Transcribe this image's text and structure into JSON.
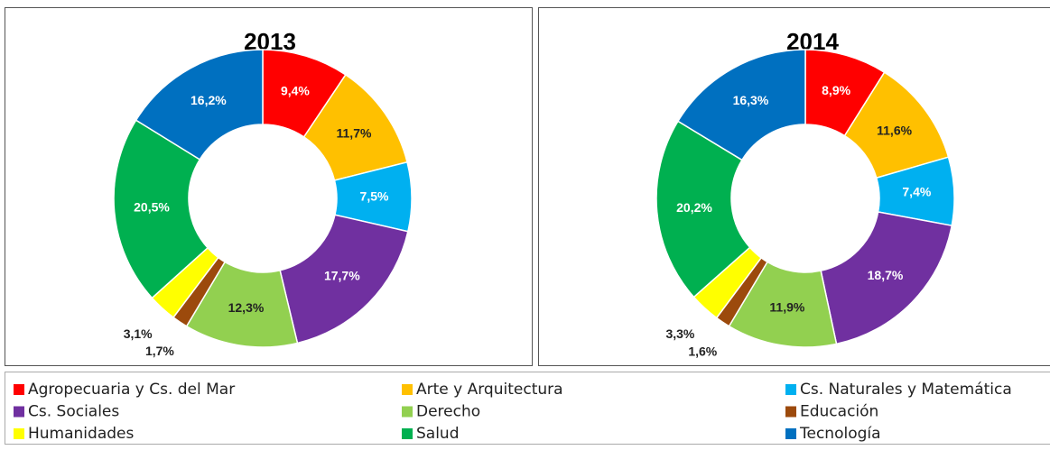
{
  "chart_data": [
    {
      "type": "pie",
      "title": "2013",
      "categories": [
        "Agropecuaria y Cs. del Mar",
        "Arte y Arquitectura",
        "Cs. Naturales y Matemática",
        "Cs. Sociales",
        "Derecho",
        "Educación",
        "Humanidades",
        "Salud",
        "Tecnología"
      ],
      "colors": [
        "#ff0000",
        "#ffc000",
        "#00b0f0",
        "#7030a0",
        "#92d050",
        "#9c4a0c",
        "#ffff00",
        "#00b050",
        "#0070c0"
      ],
      "values": [
        9.4,
        11.7,
        7.5,
        17.7,
        12.3,
        1.7,
        3.1,
        20.5,
        16.2
      ],
      "value_labels": [
        "9,4%",
        "11,7%",
        "7,5%",
        "17,7%",
        "12,3%",
        "1,7%",
        "3,1%",
        "20,5%",
        "16,2%"
      ]
    },
    {
      "type": "pie",
      "title": "2014",
      "categories": [
        "Agropecuaria y Cs. del Mar",
        "Arte y Arquitectura",
        "Cs. Naturales y Matemática",
        "Cs. Sociales",
        "Derecho",
        "Educación",
        "Humanidades",
        "Salud",
        "Tecnología"
      ],
      "colors": [
        "#ff0000",
        "#ffc000",
        "#00b0f0",
        "#7030a0",
        "#92d050",
        "#9c4a0c",
        "#ffff00",
        "#00b050",
        "#0070c0"
      ],
      "values": [
        8.9,
        11.6,
        7.4,
        18.7,
        11.9,
        1.6,
        3.3,
        20.2,
        16.3
      ],
      "value_labels": [
        "8,9%",
        "11,6%",
        "7,4%",
        "18,7%",
        "11,9%",
        "1,6%",
        "3,3%",
        "20,2%",
        "16,3%"
      ]
    }
  ]
}
